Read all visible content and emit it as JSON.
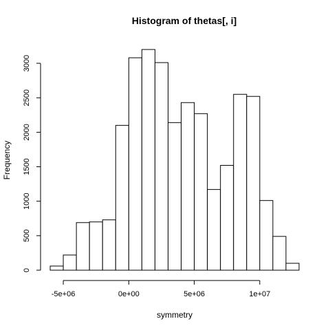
{
  "chart_data": {
    "type": "bar",
    "title": "Histogram of thetas[, i]",
    "xlabel": "symmetry",
    "ylabel": "Frequency",
    "bins": [
      {
        "x0": -6000000,
        "x1": -5000000,
        "value": 60
      },
      {
        "x0": -5000000,
        "x1": -4000000,
        "value": 220
      },
      {
        "x0": -4000000,
        "x1": -3000000,
        "value": 690
      },
      {
        "x0": -3000000,
        "x1": -2000000,
        "value": 700
      },
      {
        "x0": -2000000,
        "x1": -1000000,
        "value": 730
      },
      {
        "x0": -1000000,
        "x1": 0,
        "value": 2100
      },
      {
        "x0": 0,
        "x1": 1000000,
        "value": 3080
      },
      {
        "x0": 1000000,
        "x1": 2000000,
        "value": 3200
      },
      {
        "x0": 2000000,
        "x1": 3000000,
        "value": 3010
      },
      {
        "x0": 3000000,
        "x1": 4000000,
        "value": 2140
      },
      {
        "x0": 4000000,
        "x1": 5000000,
        "value": 2430
      },
      {
        "x0": 5000000,
        "x1": 6000000,
        "value": 2270
      },
      {
        "x0": 6000000,
        "x1": 7000000,
        "value": 1170
      },
      {
        "x0": 7000000,
        "x1": 8000000,
        "value": 1520
      },
      {
        "x0": 8000000,
        "x1": 9000000,
        "value": 2550
      },
      {
        "x0": 9000000,
        "x1": 10000000,
        "value": 2520
      },
      {
        "x0": 10000000,
        "x1": 11000000,
        "value": 1010
      },
      {
        "x0": 11000000,
        "x1": 12000000,
        "value": 490
      },
      {
        "x0": 12000000,
        "x1": 13000000,
        "value": 100
      }
    ],
    "xticks": [
      {
        "value": -5000000,
        "label": "-5e+06"
      },
      {
        "value": 0,
        "label": "0e+00"
      },
      {
        "value": 5000000,
        "label": "5e+06"
      },
      {
        "value": 10000000,
        "label": "1e+07"
      }
    ],
    "yticks": [
      {
        "value": 0,
        "label": "0"
      },
      {
        "value": 500,
        "label": "500"
      },
      {
        "value": 1000,
        "label": "1000"
      },
      {
        "value": 1500,
        "label": "1500"
      },
      {
        "value": 2000,
        "label": "2000"
      },
      {
        "value": 2500,
        "label": "2500"
      },
      {
        "value": 3000,
        "label": "3000"
      }
    ],
    "xlim": [
      -6000000,
      13000000
    ],
    "ylim": [
      0,
      3200
    ],
    "grid": false,
    "legend": "none"
  }
}
